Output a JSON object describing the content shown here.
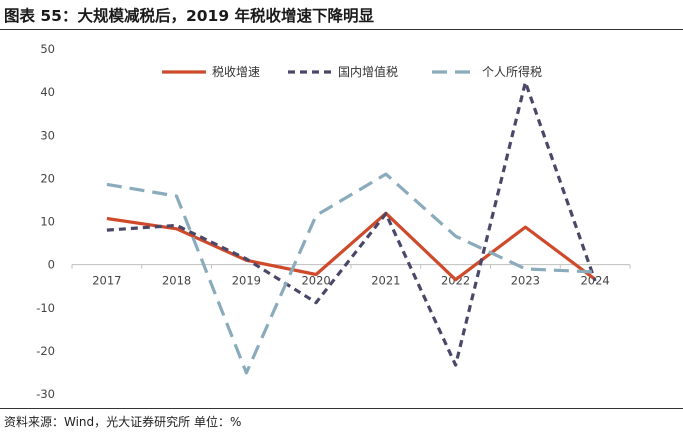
{
  "title": "图表 55：大规模减税后，2019 年税收增速下降明显",
  "source": "资料来源：Wind，光大证券研究所 单位：%",
  "chart_data": {
    "type": "line",
    "x": [
      "2017",
      "2018",
      "2019",
      "2020",
      "2021",
      "2022",
      "2023",
      "2024"
    ],
    "ylim": [
      -30,
      50
    ],
    "yticks": [
      -30,
      -20,
      -10,
      0,
      10,
      20,
      30,
      40,
      50
    ],
    "grid": false,
    "legend_position": "top",
    "series": [
      {
        "name": "税收增速",
        "color": "#cf4a2b",
        "dash": "solid",
        "values": [
          10.7,
          8.3,
          1.0,
          -2.3,
          11.9,
          -3.5,
          8.7,
          -3.4
        ]
      },
      {
        "name": "国内增值税",
        "color": "#4a4868",
        "dash": "short",
        "values": [
          8.0,
          9.1,
          1.3,
          -8.8,
          11.8,
          -23.3,
          42.3,
          -3.8
        ]
      },
      {
        "name": "个人所得税",
        "color": "#8aabbb",
        "dash": "long",
        "values": [
          18.6,
          15.9,
          -25.1,
          11.4,
          21.0,
          6.6,
          -1.0,
          -1.7
        ]
      }
    ]
  }
}
